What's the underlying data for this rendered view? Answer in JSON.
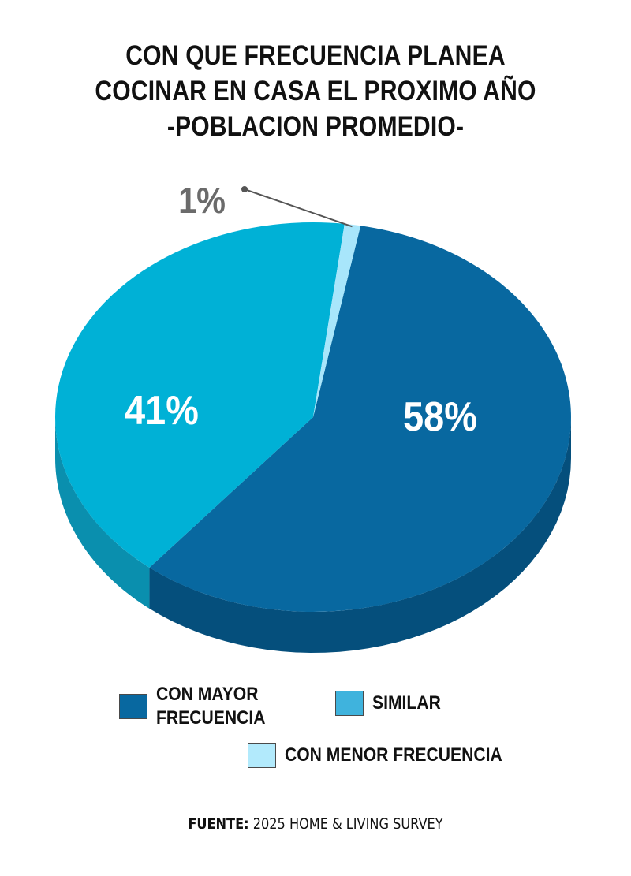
{
  "title": {
    "line1": "CON QUE FRECUENCIA PLANEA",
    "line2": "COCINAR EN CASA EL PROXIMO AÑO",
    "line3": "-POBLACION PROMEDIO-"
  },
  "chart_data": {
    "type": "pie",
    "style": "3d",
    "categories": [
      "CON MAYOR FRECUENCIA",
      "SIMILAR",
      "CON MENOR FRECUENCIA"
    ],
    "values": [
      58,
      41,
      1
    ],
    "data_labels": [
      "58%",
      "41%",
      "1%"
    ],
    "colors": [
      "#0868a0",
      "#00b1d6",
      "#a8e6fb"
    ],
    "side_colors": [
      "#054f7c",
      "#0a8fae",
      "#7fc8de"
    ],
    "legend_colors": [
      "#0868a0",
      "#3fb3dd",
      "#b2eafc"
    ],
    "label_colors": [
      "#ffffff",
      "#ffffff",
      "#6b6b6b"
    ],
    "legend_position": "bottom"
  },
  "source": {
    "label": "FUENTE:",
    "text": "2025 HOME & LIVING SURVEY"
  }
}
